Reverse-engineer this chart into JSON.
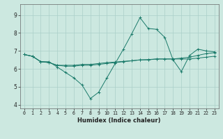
{
  "title": "",
  "xlabel": "Humidex (Indice chaleur)",
  "background_color": "#cce8e0",
  "grid_color": "#aacfc8",
  "line_color": "#1a7a6a",
  "xlim": [
    -0.5,
    23.5
  ],
  "ylim": [
    3.8,
    9.6
  ],
  "xticks": [
    0,
    1,
    2,
    3,
    4,
    5,
    6,
    7,
    8,
    9,
    10,
    11,
    12,
    13,
    14,
    15,
    16,
    17,
    18,
    19,
    20,
    21,
    22,
    23
  ],
  "yticks": [
    4,
    5,
    6,
    7,
    8,
    9
  ],
  "series": [
    [
      6.8,
      6.7,
      6.4,
      6.4,
      6.1,
      5.8,
      5.5,
      5.1,
      4.35,
      4.7,
      5.5,
      6.3,
      7.1,
      7.95,
      8.85,
      8.25,
      8.2,
      7.75,
      6.5,
      5.85,
      6.75,
      7.1,
      7.0,
      6.95
    ],
    [
      6.8,
      6.7,
      6.4,
      6.35,
      6.2,
      6.15,
      6.15,
      6.2,
      6.2,
      6.25,
      6.3,
      6.35,
      6.4,
      6.45,
      6.5,
      6.5,
      6.55,
      6.55,
      6.55,
      6.6,
      6.65,
      6.75,
      6.85,
      6.9
    ],
    [
      6.8,
      6.7,
      6.4,
      6.35,
      6.2,
      6.2,
      6.2,
      6.25,
      6.25,
      6.3,
      6.35,
      6.38,
      6.42,
      6.45,
      6.5,
      6.52,
      6.55,
      6.55,
      6.55,
      6.55,
      6.55,
      6.6,
      6.65,
      6.7
    ]
  ]
}
